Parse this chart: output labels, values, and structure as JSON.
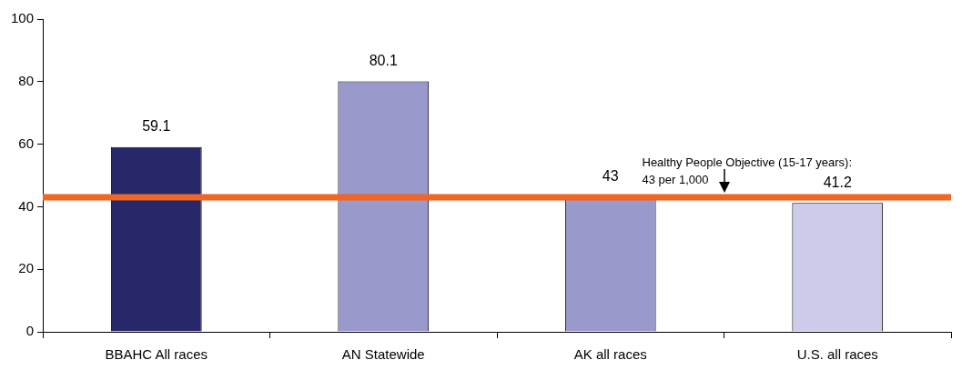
{
  "chart_data": {
    "type": "bar",
    "categories": [
      "BBAHC All races",
      "AN Statewide",
      "AK all races",
      "U.S. all races"
    ],
    "values": [
      59.1,
      80.1,
      43,
      41.2
    ],
    "colors": [
      "#27286a",
      "#9999cc",
      "#9999cc",
      "#ccccea"
    ],
    "ylim": [
      0,
      100
    ],
    "yticks": [
      0,
      20,
      40,
      60,
      80,
      100
    ],
    "data_labels": true,
    "grid": false,
    "legend": false,
    "ref_lines": [
      {
        "axis": "y",
        "value": 43,
        "label": "Healthy People Objective (15-17 years): 43 per 1,000",
        "color": "#f26522"
      }
    ]
  }
}
